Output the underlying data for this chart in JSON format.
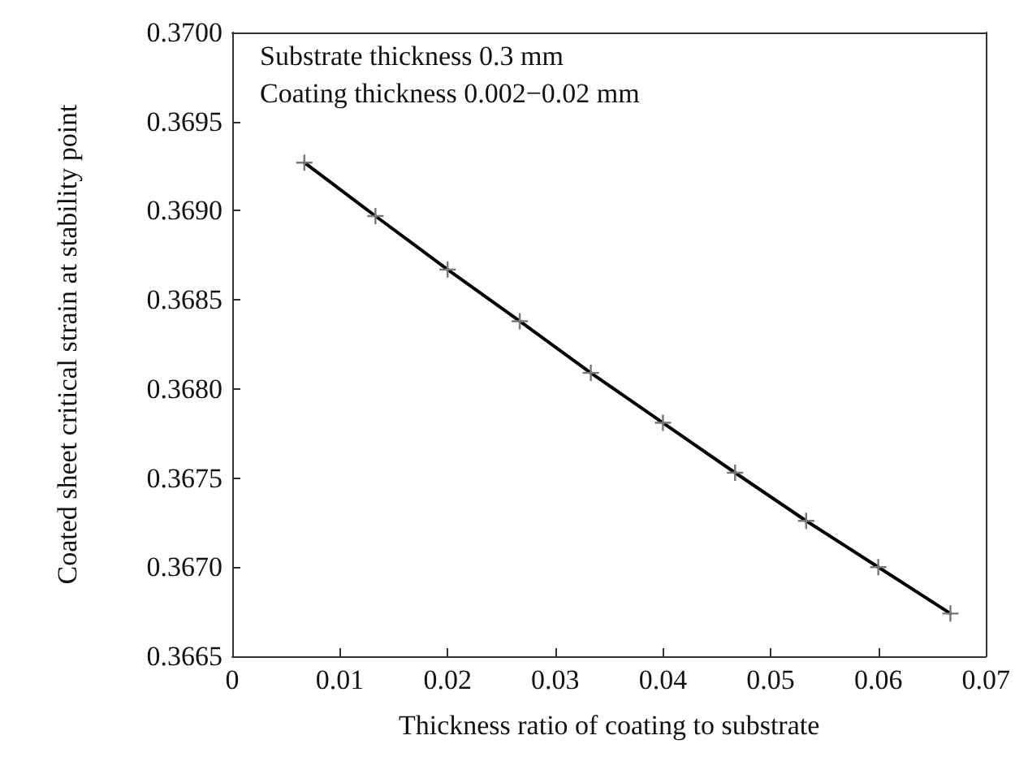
{
  "chart_data": {
    "type": "line",
    "xlabel": "Thickness ratio of coating to substrate",
    "ylabel": "Coated sheet critical strain at stability point",
    "annotations": [
      "Substrate thickness 0.3 mm",
      "Coating thickness 0.002−0.02 mm"
    ],
    "x": [
      0.0067,
      0.0133,
      0.02,
      0.0267,
      0.0333,
      0.04,
      0.0467,
      0.0533,
      0.06,
      0.0667
    ],
    "series": [
      {
        "color": "#000000",
        "values": [
          0.36927,
          0.36897,
          0.36867,
          0.36838,
          0.36809,
          0.36781,
          0.36753,
          0.36726,
          0.367,
          0.36674
        ]
      }
    ],
    "xlim": [
      0,
      0.07
    ],
    "xticks": [
      0,
      0.01,
      0.02,
      0.03,
      0.04,
      0.05,
      0.06,
      0.07
    ],
    "ylim": [
      0.3665,
      0.37
    ],
    "yticks": [
      {
        "value": 0.3665,
        "label": "0.3665"
      },
      {
        "value": 0.367,
        "label": "0.3670"
      },
      {
        "value": 0.3675,
        "label": "0.3675"
      },
      {
        "value": 0.368,
        "label": "0.3680"
      },
      {
        "value": 0.3685,
        "label": "0.3685"
      },
      {
        "value": 0.369,
        "label": "0.3690"
      },
      {
        "value": 0.3695,
        "label": "0.3695"
      },
      {
        "value": 0.37,
        "label": "0.3700"
      }
    ],
    "grid": false,
    "marker": "cross",
    "line_style": "solid"
  }
}
